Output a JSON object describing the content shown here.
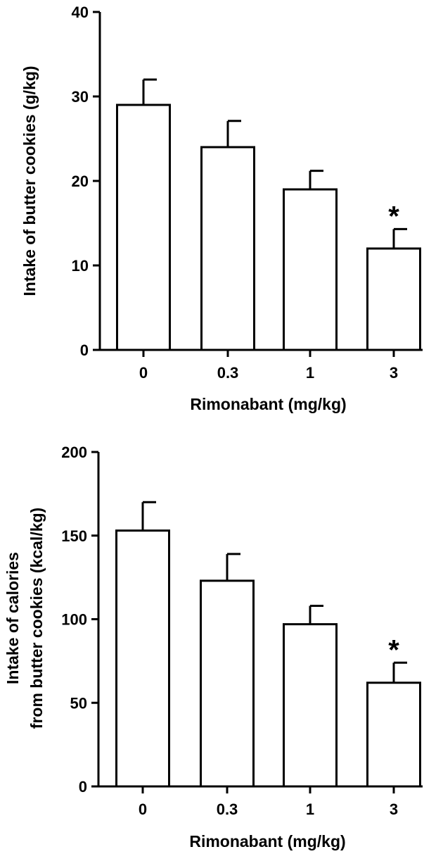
{
  "chart_data": [
    {
      "type": "bar",
      "categories": [
        "0",
        "0.3",
        "1",
        "3"
      ],
      "values": [
        29,
        24,
        19,
        12
      ],
      "errors": [
        3,
        3.1,
        2.2,
        2.3
      ],
      "annotations": [
        "",
        "",
        "",
        "*"
      ],
      "xlabel": "Rimonabant (mg/kg)",
      "ylabel_lines": [
        "Intake of butter cookies (g/kg)"
      ],
      "ylim": [
        0,
        40
      ],
      "yticks": [
        "0",
        "10",
        "20",
        "30",
        "40"
      ],
      "grid": false
    },
    {
      "type": "bar",
      "categories": [
        "0",
        "0.3",
        "1",
        "3"
      ],
      "values": [
        153,
        123,
        97,
        62
      ],
      "errors": [
        17,
        16,
        11,
        12
      ],
      "annotations": [
        "",
        "",
        "",
        "*"
      ],
      "xlabel": "Rimonabant (mg/kg)",
      "ylabel_lines": [
        "Intake of calories",
        "from butter cookies (kcal/kg)"
      ],
      "ylim": [
        0,
        200
      ],
      "yticks": [
        "0",
        "50",
        "100",
        "150",
        "200"
      ],
      "grid": false
    }
  ]
}
